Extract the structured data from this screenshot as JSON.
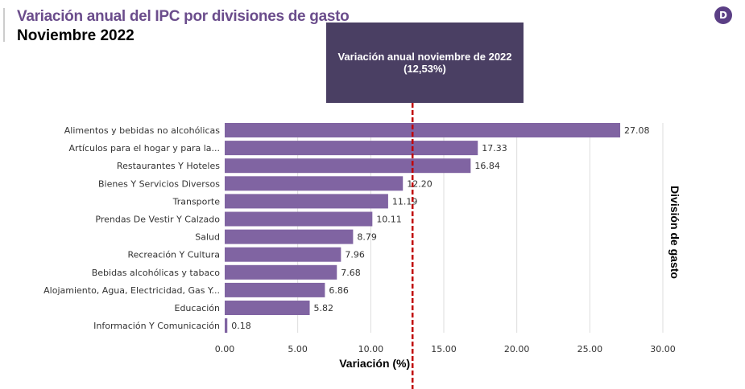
{
  "header": {
    "title": "Variación anual del IPC por divisiones de gasto",
    "subtitle": "Noviembre 2022",
    "logo_icon": "D"
  },
  "annotation": {
    "line1": "Variación anual noviembre de 2022",
    "line2": "(12,53%)",
    "value": 12.53,
    "line_color": "#c00000",
    "box_color": "#4a3f63"
  },
  "chart_data": {
    "type": "bar",
    "orientation": "horizontal",
    "categories": [
      "Alimentos y bebidas no alcohólicas",
      "Artículos para el hogar y para la...",
      "Restaurantes Y Hoteles",
      "Bienes Y Servicios Diversos",
      "Transporte",
      "Prendas De Vestir Y Calzado",
      "Salud",
      "Recreación Y Cultura",
      "Bebidas alcohólicas y tabaco",
      "Alojamiento, Agua, Electricidad, Gas Y...",
      "Educación",
      "Información Y Comunicación"
    ],
    "values": [
      27.08,
      17.33,
      16.84,
      12.2,
      11.19,
      10.11,
      8.79,
      7.96,
      7.68,
      6.86,
      5.82,
      0.18
    ],
    "value_labels": [
      "27.08",
      "17.33",
      "16.84",
      "12.20",
      "11.19",
      "10.11",
      "8.79",
      "7.96",
      "7.68",
      "6.86",
      "5.82",
      "0.18"
    ],
    "xlabel": "Variación (%)",
    "ylabel": "División de gasto",
    "xlim": [
      0,
      30
    ],
    "xticks": [
      "0.00",
      "5.00",
      "10.00",
      "15.00",
      "20.00",
      "25.00",
      "30.00"
    ],
    "grid": true,
    "bar_color": "#8064a2"
  }
}
